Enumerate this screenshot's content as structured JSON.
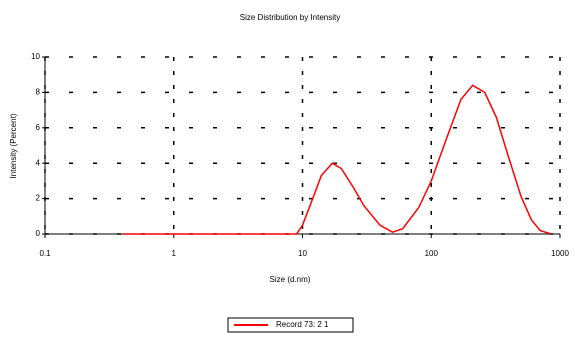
{
  "chart_data": {
    "type": "line",
    "title": "Size Distribution by Intensity",
    "x_label": "Size (d.nm)",
    "y_label": "Intensity (Percent)",
    "x": [
      0.4,
      1,
      5,
      9,
      10,
      12,
      14,
      17,
      20,
      25,
      30,
      40,
      50,
      60,
      80,
      100,
      130,
      170,
      210,
      260,
      320,
      400,
      500,
      600,
      700,
      850
    ],
    "series": [
      {
        "name": "Record 73: 2 1",
        "color": "#ff0000",
        "values": [
          0,
          0,
          0,
          0,
          0.5,
          2.0,
          3.3,
          4.0,
          3.7,
          2.6,
          1.6,
          0.5,
          0.1,
          0.3,
          1.5,
          3.0,
          5.3,
          7.6,
          8.4,
          8.0,
          6.6,
          4.3,
          2.1,
          0.8,
          0.2,
          0
        ]
      }
    ],
    "xlim": [
      0.1,
      1000
    ],
    "xticks": [
      0.1,
      1,
      10,
      100,
      1000
    ],
    "xscale": "log",
    "ylim": [
      0,
      10
    ],
    "yticks": [
      0,
      2,
      4,
      6,
      8,
      10
    ],
    "grid": true
  }
}
